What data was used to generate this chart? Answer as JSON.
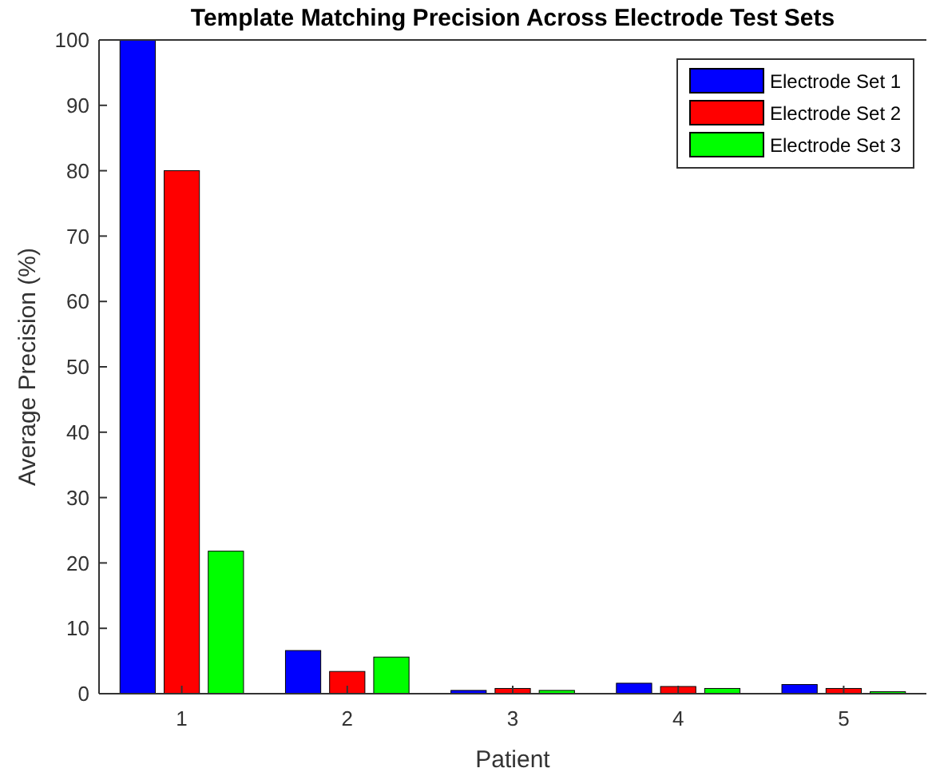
{
  "chart_data": {
    "type": "bar",
    "title": "Template Matching Precision Across Electrode Test Sets",
    "xlabel": "Patient",
    "ylabel": "Average Precision (%)",
    "categories": [
      "1",
      "2",
      "3",
      "4",
      "5"
    ],
    "series": [
      {
        "name": "Electrode Set 1",
        "color": "#0000ff",
        "values": [
          100,
          6.6,
          0.5,
          1.6,
          1.4
        ]
      },
      {
        "name": "Electrode Set 2",
        "color": "#ff0000",
        "values": [
          80,
          3.4,
          0.8,
          1.1,
          0.8
        ]
      },
      {
        "name": "Electrode Set 3",
        "color": "#00ff00",
        "values": [
          21.8,
          5.6,
          0.5,
          0.8,
          0.3
        ]
      }
    ],
    "ylim": [
      0,
      100
    ],
    "yticks": [
      0,
      10,
      20,
      30,
      40,
      50,
      60,
      70,
      80,
      90,
      100
    ],
    "grid": false,
    "legend": "top right"
  }
}
